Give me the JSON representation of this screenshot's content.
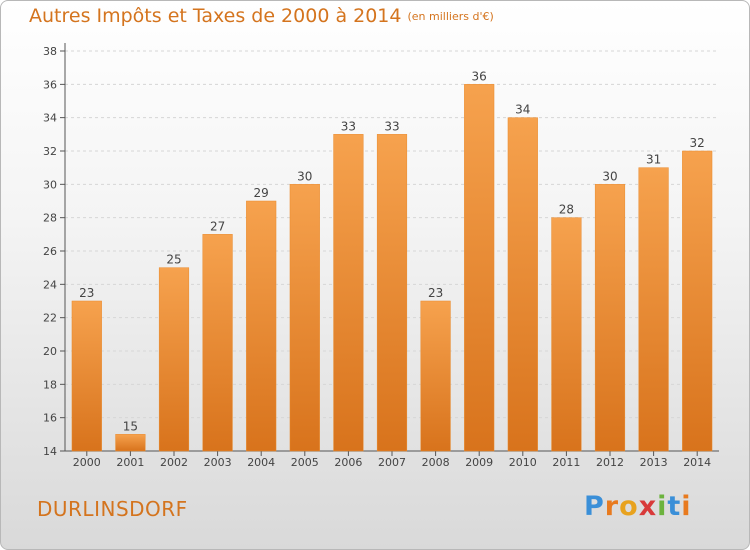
{
  "header": {
    "title": "Autres Impôts et Taxes de 2000 à 2014",
    "subtitle": "(en milliers d'€)"
  },
  "footer": {
    "commune": "DURLINSDORF",
    "logo_letters": [
      {
        "char": "P",
        "color": "#3a8fd8"
      },
      {
        "char": "r",
        "color": "#e87a1e"
      },
      {
        "char": "o",
        "color": "#e8a21e"
      },
      {
        "char": "x",
        "color": "#d83a3a"
      },
      {
        "char": "i",
        "color": "#6cb33e"
      },
      {
        "char": "t",
        "color": "#3a8fd8"
      },
      {
        "char": "i",
        "color": "#e87a1e"
      }
    ]
  },
  "colors": {
    "bar_top": "#f6a24e",
    "bar_bottom": "#d8731c",
    "bar_edge": "#e98a2c",
    "accent": "#d4741e"
  },
  "chart_data": {
    "type": "bar",
    "title": "Autres Impôts et Taxes de 2000 à 2014",
    "subtitle": "(en milliers d'€)",
    "xlabel": "",
    "ylabel": "",
    "categories": [
      "2000",
      "2001",
      "2002",
      "2003",
      "2004",
      "2005",
      "2006",
      "2007",
      "2008",
      "2009",
      "2010",
      "2011",
      "2012",
      "2013",
      "2014"
    ],
    "values": [
      23,
      15,
      25,
      27,
      29,
      30,
      33,
      33,
      23,
      36,
      34,
      28,
      30,
      31,
      32
    ],
    "ylim": [
      14,
      38
    ],
    "yticks": [
      14,
      16,
      18,
      20,
      22,
      24,
      26,
      28,
      30,
      32,
      34,
      36,
      38
    ],
    "grid": true,
    "data_labels": true
  }
}
